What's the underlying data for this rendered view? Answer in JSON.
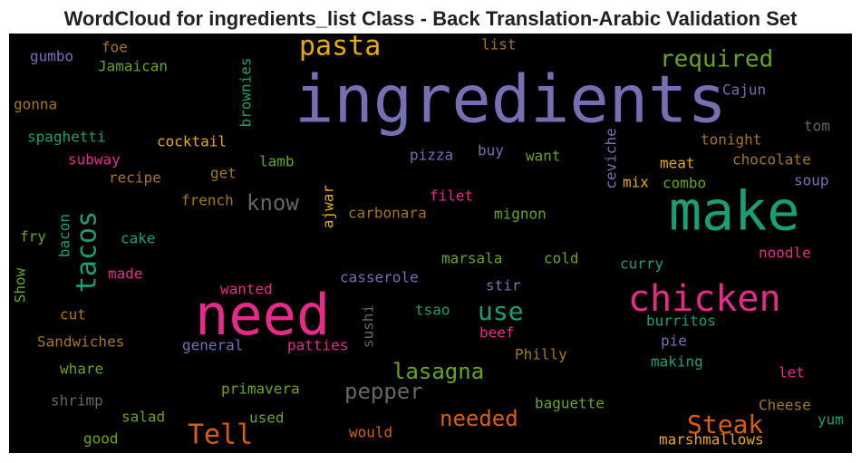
{
  "title": "WordCloud for ingredients_list Class - Back Translation-Arabic Validation Set",
  "words": [
    {
      "text": "ingredients",
      "color": "#7570b3"
    },
    {
      "text": "make",
      "color": "#1b9e77"
    },
    {
      "text": "need",
      "color": "#e7298a"
    },
    {
      "text": "chicken",
      "color": "#e7298a"
    },
    {
      "text": "pasta",
      "color": "#e6ab02"
    },
    {
      "text": "required",
      "color": "#66a61e"
    },
    {
      "text": "tacos",
      "color": "#1b9e77"
    },
    {
      "text": "Tell",
      "color": "#d95f02"
    },
    {
      "text": "Steak",
      "color": "#d95f02"
    },
    {
      "text": "use",
      "color": "#1b9e77"
    },
    {
      "text": "know",
      "color": "#666666"
    },
    {
      "text": "lasagna",
      "color": "#66a61e"
    },
    {
      "text": "pepper",
      "color": "#666666"
    },
    {
      "text": "needed",
      "color": "#d95f02"
    },
    {
      "text": "gumbo",
      "color": "#7570b3"
    },
    {
      "text": "foe",
      "color": "#a6761d"
    },
    {
      "text": "Jamaican",
      "color": "#66a61e"
    },
    {
      "text": "brownies",
      "color": "#1b9e77"
    },
    {
      "text": "list",
      "color": "#a6761d"
    },
    {
      "text": "Cajun",
      "color": "#7570b3"
    },
    {
      "text": "gonna",
      "color": "#a6761d"
    },
    {
      "text": "tom",
      "color": "#666666"
    },
    {
      "text": "spaghetti",
      "color": "#1b9e77"
    },
    {
      "text": "cocktail",
      "color": "#e6ab02"
    },
    {
      "text": "tonight",
      "color": "#a6761d"
    },
    {
      "text": "ceviche",
      "color": "#7570b3"
    },
    {
      "text": "subway",
      "color": "#e7298a"
    },
    {
      "text": "lamb",
      "color": "#66a61e"
    },
    {
      "text": "pizza",
      "color": "#7570b3"
    },
    {
      "text": "buy",
      "color": "#7570b3"
    },
    {
      "text": "want",
      "color": "#66a61e"
    },
    {
      "text": "meat",
      "color": "#e6ab02"
    },
    {
      "text": "chocolate",
      "color": "#a6761d"
    },
    {
      "text": "recipe",
      "color": "#a6761d"
    },
    {
      "text": "get",
      "color": "#a6761d"
    },
    {
      "text": "mix",
      "color": "#e6ab02"
    },
    {
      "text": "combo",
      "color": "#66a61e"
    },
    {
      "text": "soup",
      "color": "#7570b3"
    },
    {
      "text": "french",
      "color": "#a6761d"
    },
    {
      "text": "filet",
      "color": "#e7298a"
    },
    {
      "text": "ajwar",
      "color": "#e6ab02"
    },
    {
      "text": "carbonara",
      "color": "#a6761d"
    },
    {
      "text": "mignon",
      "color": "#66a61e"
    },
    {
      "text": "fry",
      "color": "#66a61e"
    },
    {
      "text": "bacon",
      "color": "#1b9e77"
    },
    {
      "text": "cake",
      "color": "#1b9e77"
    },
    {
      "text": "marsala",
      "color": "#66a61e"
    },
    {
      "text": "cold",
      "color": "#66a61e"
    },
    {
      "text": "curry",
      "color": "#1b9e77"
    },
    {
      "text": "noodle",
      "color": "#e7298a"
    },
    {
      "text": "made",
      "color": "#e7298a"
    },
    {
      "text": "casserole",
      "color": "#7570b3"
    },
    {
      "text": "Show",
      "color": "#66a61e"
    },
    {
      "text": "stir",
      "color": "#7570b3"
    },
    {
      "text": "wanted",
      "color": "#e7298a"
    },
    {
      "text": "cut",
      "color": "#a6761d"
    },
    {
      "text": "tsao",
      "color": "#1b9e77"
    },
    {
      "text": "sushi",
      "color": "#666666"
    },
    {
      "text": "burritos",
      "color": "#1b9e77"
    },
    {
      "text": "beef",
      "color": "#e7298a"
    },
    {
      "text": "Sandwiches",
      "color": "#a6761d"
    },
    {
      "text": "general",
      "color": "#7570b3"
    },
    {
      "text": "patties",
      "color": "#e7298a"
    },
    {
      "text": "pie",
      "color": "#7570b3"
    },
    {
      "text": "Philly",
      "color": "#a6761d"
    },
    {
      "text": "whare",
      "color": "#66a61e"
    },
    {
      "text": "making",
      "color": "#1b9e77"
    },
    {
      "text": "let",
      "color": "#e7298a"
    },
    {
      "text": "shrimp",
      "color": "#666666"
    },
    {
      "text": "primavera",
      "color": "#66a61e"
    },
    {
      "text": "baguette",
      "color": "#66a61e"
    },
    {
      "text": "Cheese",
      "color": "#a6761d"
    },
    {
      "text": "salad",
      "color": "#66a61e"
    },
    {
      "text": "used",
      "color": "#66a61e"
    },
    {
      "text": "yum",
      "color": "#1b9e77"
    },
    {
      "text": "would",
      "color": "#d95f02"
    },
    {
      "text": "good",
      "color": "#66a61e"
    },
    {
      "text": "marshmallows",
      "color": "#e6ab02"
    }
  ]
}
